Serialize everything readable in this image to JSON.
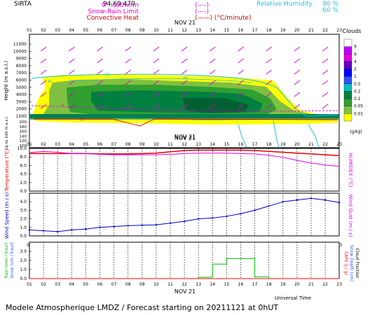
{
  "header": {
    "station": "SIRTA",
    "code": "94.69 470",
    "legend": [
      {
        "label": "0° isotherm",
        "sample": "(----)",
        "color": "#e000e0"
      },
      {
        "label": "Snow-Rain Limit",
        "sample": "(----)",
        "color": "#e000e0"
      },
      {
        "label": "Convective Heat",
        "sample": "(——) (°C/minute)",
        "color": "#d00000"
      }
    ],
    "rh_label": "Relative Humidity",
    "rh_levels": [
      "90 %",
      "60 %"
    ],
    "rh_color": "#20c0e0"
  },
  "footer": {
    "caption": "Modele Atmospherique LMDZ / Forecast starting on 20211121 at 0hUT",
    "xlabel": "Universal Time"
  },
  "colors": {
    "temperature": "#e00000",
    "humidex": "#e000e0",
    "wind": "#0000c0",
    "rain": "#00c000",
    "cape": "#ff0000"
  },
  "chart_data": [
    {
      "type": "heatmap",
      "title": "Clouds",
      "date_label": "NOV 21",
      "x": [
        "01",
        "02",
        "03",
        "04",
        "05",
        "06",
        "07",
        "08",
        "09",
        "10",
        "11",
        "12",
        "13",
        "14",
        "15",
        "16",
        "17",
        "18",
        "19",
        "20",
        "21",
        "22",
        "23"
      ],
      "ylabel": "Height (m a.s.l.)",
      "ylabel2": "Up to 200 m a.s.l.",
      "y_ticks_upper": [
        "11000",
        "10000",
        "9000",
        "8000",
        "7000",
        "6000",
        "5000",
        "4000",
        "3000",
        "2000",
        "1000"
      ],
      "y_ticks_lower": [
        "200",
        "180",
        "160",
        "140",
        "120",
        "100"
      ],
      "colorbar_unit": "(g/kg)",
      "colorbar_ticks": [
        "9",
        "6",
        "4",
        "2",
        "1",
        "0.5",
        "0.2",
        "0.1",
        "0.05",
        "0.01"
      ],
      "colorbar_colors": [
        "#ffffff",
        "#c000ff",
        "#e000e0",
        "#6000c0",
        "#0000ff",
        "#3050ff",
        "#00c0c0",
        "#008040",
        "#30a030",
        "#80c040",
        "#ffff00"
      ],
      "contour_labels": [
        "60",
        "60",
        "60",
        "0",
        "0"
      ]
    },
    {
      "type": "line",
      "date_label": "NOV 21",
      "x": [
        "01",
        "02",
        "03",
        "04",
        "05",
        "06",
        "07",
        "08",
        "09",
        "10",
        "11",
        "12",
        "13",
        "14",
        "15",
        "16",
        "17",
        "18",
        "19",
        "20",
        "21",
        "22",
        "23"
      ],
      "ylabel": "Temperature (°C)",
      "ylabel2": "HUMIDEX (°C)",
      "y_ticks": [
        "0.0",
        "2.0",
        "4.0",
        "6.0",
        "8.0",
        "10.0"
      ],
      "ylim": [
        0,
        10
      ],
      "series": [
        {
          "name": "Temperature",
          "values": [
            8.8,
            8.8,
            8.8,
            8.8,
            8.8,
            8.7,
            8.7,
            8.7,
            8.8,
            8.9,
            9.2,
            9.5,
            9.6,
            9.6,
            9.6,
            9.6,
            9.5,
            9.3,
            9.1,
            8.9,
            8.7,
            8.5,
            8.3
          ]
        },
        {
          "name": "HUMIDEX",
          "values": [
            9.0,
            9.3,
            9.1,
            8.8,
            8.8,
            8.6,
            8.5,
            8.5,
            8.5,
            8.5,
            8.6,
            8.8,
            8.9,
            8.9,
            8.9,
            8.8,
            8.7,
            8.4,
            7.9,
            7.2,
            6.6,
            6.1,
            5.8
          ]
        }
      ]
    },
    {
      "type": "line",
      "date_label": "NOV 21",
      "x": [
        "01",
        "02",
        "03",
        "04",
        "05",
        "06",
        "07",
        "08",
        "09",
        "10",
        "11",
        "12",
        "13",
        "14",
        "15",
        "16",
        "17",
        "18",
        "19",
        "20",
        "21",
        "22",
        "23"
      ],
      "ylabel": "Wind Speed (m / s)",
      "ylabel2": "Wind Gust (m / s)",
      "y_ticks": [
        "0.0",
        "1.0",
        "2.0",
        "3.0",
        "4.0"
      ],
      "ylim": [
        0,
        5
      ],
      "series": [
        {
          "name": "Wind Speed",
          "values": [
            0.7,
            0.6,
            0.5,
            0.7,
            0.8,
            1.0,
            1.1,
            1.2,
            1.25,
            1.3,
            1.5,
            1.7,
            2.0,
            2.1,
            2.3,
            2.6,
            3.0,
            3.5,
            4.0,
            4.2,
            4.4,
            4.2,
            3.9
          ]
        }
      ]
    },
    {
      "type": "line",
      "date_label": "NOV 21",
      "x": [
        "01",
        "02",
        "03",
        "04",
        "05",
        "06",
        "07",
        "08",
        "09",
        "10",
        "11",
        "12",
        "13",
        "14",
        "15",
        "16",
        "17",
        "18",
        "19",
        "20",
        "21",
        "22",
        "23"
      ],
      "ylabel": "Rain (mm / hour)",
      "ylabel_b": "Snow (cm / hour)",
      "ylabel2": "CAPE (J / g)",
      "ylabel3": "Snow Depth (cm)",
      "ylabel4": "Cloud Fraction",
      "y_ticks": [
        "0.0",
        "1.0",
        "2.0",
        "3.0"
      ],
      "ylim": [
        0,
        4
      ],
      "series": [
        {
          "name": "Rain",
          "values": [
            0,
            0,
            0,
            0,
            0,
            0,
            0,
            0,
            0,
            0,
            0,
            0,
            0.15,
            1.6,
            2.2,
            2.2,
            0.2,
            0,
            0,
            0,
            0,
            0,
            0
          ]
        },
        {
          "name": "CAPE",
          "values": [
            0,
            0,
            0,
            0,
            0,
            0,
            0,
            0,
            0,
            0,
            0,
            0,
            0,
            0,
            0,
            0,
            0,
            0,
            0,
            0,
            0,
            0,
            0
          ]
        }
      ]
    }
  ]
}
